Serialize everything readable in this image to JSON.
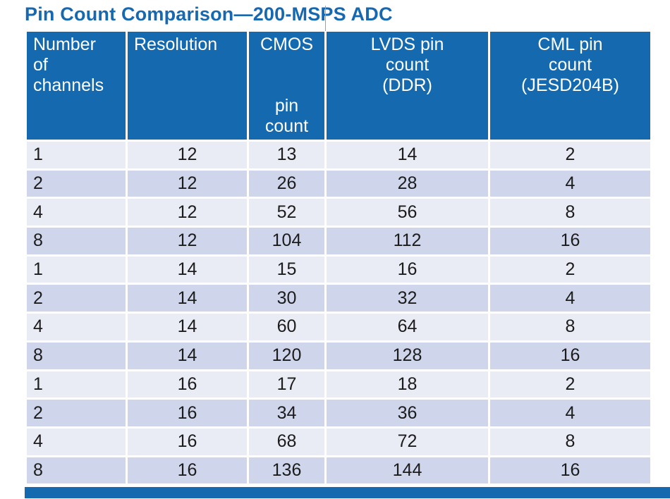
{
  "title": "Pin Count Comparison—200-MSPS ADC",
  "colors": {
    "accent_blue": "#1569ae",
    "title_blue": "#1668b0",
    "row_light": "#e9ebf5",
    "row_dark": "#cfd6eb",
    "header_text": "#ffffff",
    "body_text": "#1c1c1c"
  },
  "chart_data": {
    "type": "table",
    "title": "Pin Count Comparison—200-MSPS ADC",
    "columns": [
      {
        "label": "Number\nof\nchannels",
        "header_align": "left",
        "data_align": "left"
      },
      {
        "label": "Resolution",
        "header_align": "left",
        "data_align": "center"
      },
      {
        "label": "CMOS\n\n\npin count",
        "header_align": "center",
        "data_align": "center"
      },
      {
        "label": "LVDS pin\ncount\n(DDR)",
        "header_align": "center",
        "data_align": "center"
      },
      {
        "label": "CML pin\ncount\n(JESD204B)",
        "header_align": "center",
        "data_align": "center"
      }
    ],
    "rows": [
      [
        1,
        12,
        13,
        14,
        2
      ],
      [
        2,
        12,
        26,
        28,
        4
      ],
      [
        4,
        12,
        52,
        56,
        8
      ],
      [
        8,
        12,
        104,
        112,
        16
      ],
      [
        1,
        14,
        15,
        16,
        2
      ],
      [
        2,
        14,
        30,
        32,
        4
      ],
      [
        4,
        14,
        60,
        64,
        8
      ],
      [
        8,
        14,
        120,
        128,
        16
      ],
      [
        1,
        16,
        17,
        18,
        2
      ],
      [
        2,
        16,
        34,
        36,
        4
      ],
      [
        4,
        16,
        68,
        72,
        8
      ],
      [
        8,
        16,
        136,
        144,
        16
      ]
    ],
    "legend_position": "none",
    "grid": "white-separators"
  }
}
